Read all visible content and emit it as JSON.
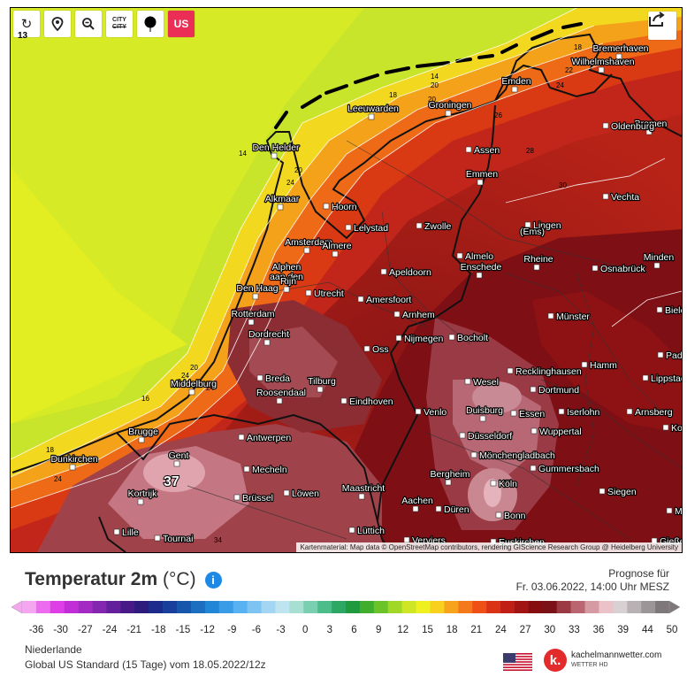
{
  "toolbar": {
    "reload_label": "↻",
    "location_label": "⌖",
    "zoom_out_label": "🔍",
    "city_label": "CITY",
    "city_label2": "CITY",
    "marker_label": "●",
    "us_label": "US"
  },
  "map": {
    "corner_value": "13",
    "attribution": "Kartenmaterial: Map data © OpenStreetMap contributors, rendering GIScience Research Group @ Heidelberg University",
    "big_value": "37",
    "cities": [
      {
        "name": "Bremerhaven"
      },
      {
        "name": "Wilhelmshaven"
      },
      {
        "name": "Bremen"
      },
      {
        "name": "Emden"
      },
      {
        "name": "Leeuwarden"
      },
      {
        "name": "Groningen"
      },
      {
        "name": "Oldenburg"
      },
      {
        "name": "Den Helder"
      },
      {
        "name": "Assen"
      },
      {
        "name": "Emmen"
      },
      {
        "name": "Vechta"
      },
      {
        "name": "Alkmaar"
      },
      {
        "name": "Hoorn"
      },
      {
        "name": "Lelystad"
      },
      {
        "name": "Zwolle"
      },
      {
        "name": "Lingen"
      },
      {
        "name": "(Ems)"
      },
      {
        "name": "Amsterdam"
      },
      {
        "name": "Almere"
      },
      {
        "name": "Almelo"
      },
      {
        "name": "Apeldoorn"
      },
      {
        "name": "Enschede"
      },
      {
        "name": "Rheine"
      },
      {
        "name": "Osnabrück"
      },
      {
        "name": "Minden"
      },
      {
        "name": "Alphen"
      },
      {
        "name": "aan den"
      },
      {
        "name": "Rijn"
      },
      {
        "name": "Den Haag"
      },
      {
        "name": "Utrecht"
      },
      {
        "name": "Amersfoort"
      },
      {
        "name": "Bielefeld"
      },
      {
        "name": "Rotterdam"
      },
      {
        "name": "Arnhem"
      },
      {
        "name": "Münster"
      },
      {
        "name": "Dordrecht"
      },
      {
        "name": "Nijmegen"
      },
      {
        "name": "Bocholt"
      },
      {
        "name": "Oss"
      },
      {
        "name": "Paderborn"
      },
      {
        "name": "Hamm"
      },
      {
        "name": "Lippstadt"
      },
      {
        "name": "Middelburg"
      },
      {
        "name": "Breda"
      },
      {
        "name": "Tilburg"
      },
      {
        "name": "Recklinghausen"
      },
      {
        "name": "Roosendaal"
      },
      {
        "name": "Eindhoven"
      },
      {
        "name": "Wesel"
      },
      {
        "name": "Dortmund"
      },
      {
        "name": "Arnsberg"
      },
      {
        "name": "Venlo"
      },
      {
        "name": "Duisburg"
      },
      {
        "name": "Essen"
      },
      {
        "name": "Iserlohn"
      },
      {
        "name": "Korbach"
      },
      {
        "name": "Brugge"
      },
      {
        "name": "Antwerpen"
      },
      {
        "name": "Düsseldorf"
      },
      {
        "name": "Wuppertal"
      },
      {
        "name": "Dunkirchen"
      },
      {
        "name": "Gent"
      },
      {
        "name": "Mecheln"
      },
      {
        "name": "Mönchengladbach"
      },
      {
        "name": "Gummersbach"
      },
      {
        "name": "Bergheim"
      },
      {
        "name": "Köln"
      },
      {
        "name": "Kortrijk"
      },
      {
        "name": "Brüssel"
      },
      {
        "name": "Löwen"
      },
      {
        "name": "Maastricht"
      },
      {
        "name": "Siegen"
      },
      {
        "name": "Aachen"
      },
      {
        "name": "Düren"
      },
      {
        "name": "Bonn"
      },
      {
        "name": "Marburg"
      },
      {
        "name": "Lille"
      },
      {
        "name": "Tournai"
      },
      {
        "name": "Lüttich"
      },
      {
        "name": "Verviers"
      },
      {
        "name": "Euskirchen"
      },
      {
        "name": "Gießen"
      }
    ],
    "isolines": [
      "18",
      "22",
      "24",
      "14",
      "20",
      "18",
      "20",
      "20",
      "26",
      "14",
      "20",
      "24",
      "28",
      "30",
      "24",
      "16",
      "20",
      "24",
      "18",
      "24",
      "34"
    ]
  },
  "title": {
    "main": "Temperatur 2m",
    "unit": "(°C)",
    "info_icon": "i"
  },
  "forecast": {
    "line1": "Prognose für",
    "line2": "Fr. 03.06.2022, 14:00 Uhr MESZ"
  },
  "scale": {
    "ticks": [
      "-36",
      "-30",
      "-27",
      "-24",
      "-21",
      "-18",
      "-15",
      "-12",
      "-9",
      "-6",
      "-3",
      "0",
      "3",
      "6",
      "9",
      "12",
      "15",
      "18",
      "21",
      "24",
      "27",
      "30",
      "33",
      "36",
      "39",
      "44",
      "50"
    ],
    "colors": [
      "#f4a6f0",
      "#ec6bef",
      "#dd3ee6",
      "#c12ed7",
      "#a32bc3",
      "#8326b0",
      "#641f9c",
      "#471a88",
      "#2d1c7e",
      "#1d2c8c",
      "#183f9b",
      "#1856ab",
      "#1c6fc0",
      "#2286d6",
      "#3a9be6",
      "#58b1f0",
      "#7dc4f2",
      "#a3d6f3",
      "#bee4f0",
      "#a7e0d3",
      "#79cfb0",
      "#4cbd8a",
      "#2ca864",
      "#1f9a3f",
      "#3fae2d",
      "#6bc328",
      "#a0d825",
      "#cee623",
      "#eef01f",
      "#f7d11e",
      "#f7a31b",
      "#f4791a",
      "#ee5016",
      "#d93214",
      "#bf1f14",
      "#a01414",
      "#850d10",
      "#7a1218",
      "#9b3a42",
      "#b96670",
      "#d59aa2",
      "#eac2c8",
      "#d8d0d3",
      "#b9b2b4",
      "#9c9598",
      "#7e787b"
    ]
  },
  "footer": {
    "region": "Niederlande",
    "model": "Global US Standard  (15 Tage)  vom 18.05.2022/12z"
  },
  "logo": {
    "badge": "k.",
    "name": "kachelmannwetter.com",
    "sub": "WETTER HD"
  }
}
